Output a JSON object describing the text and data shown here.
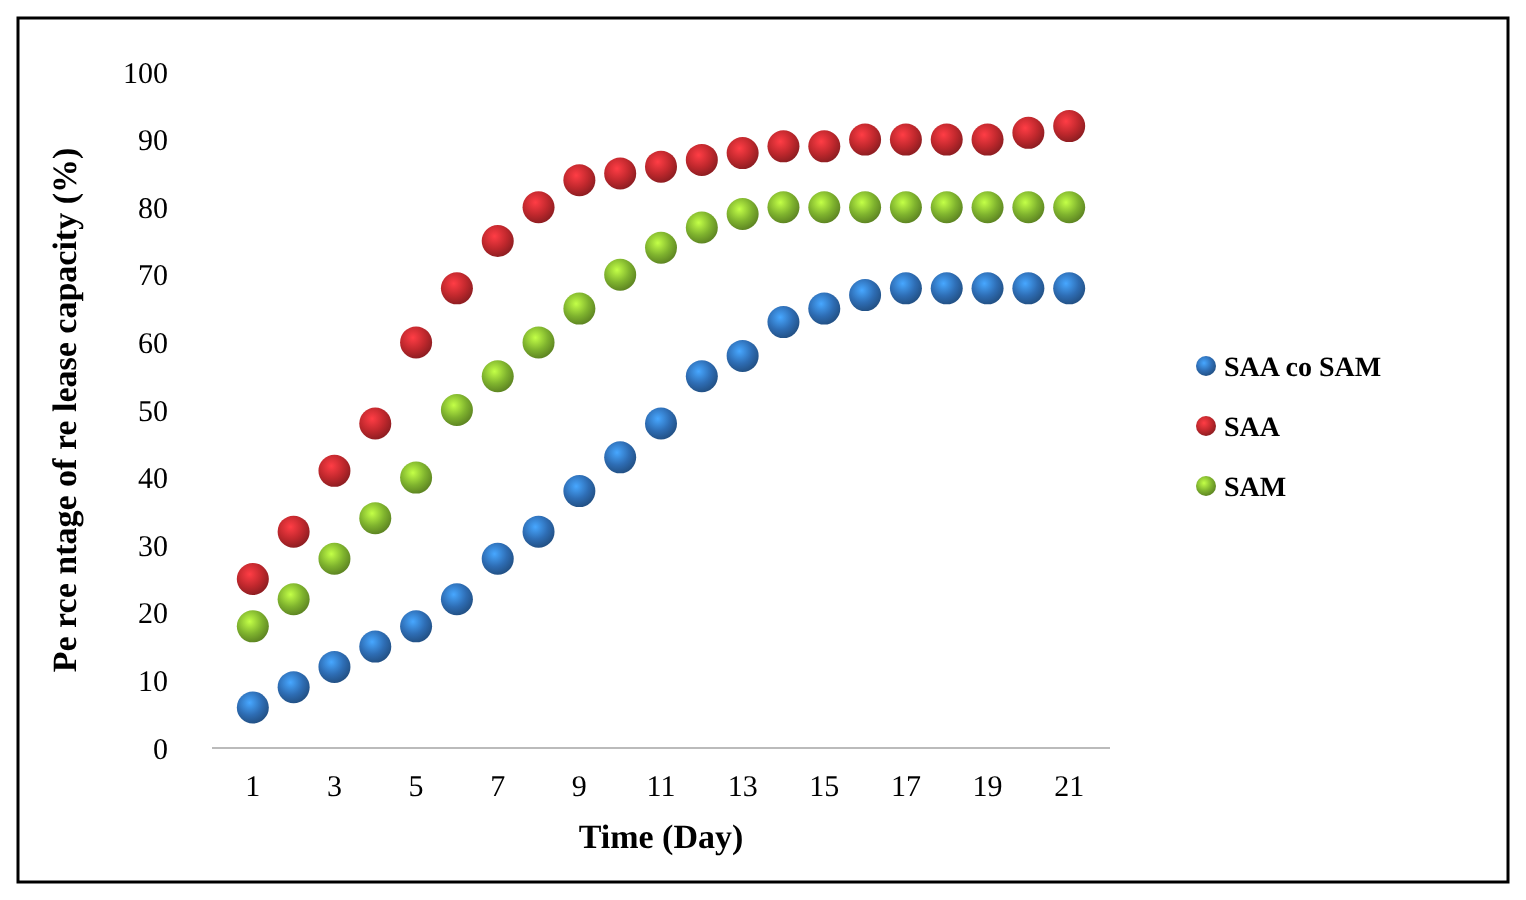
{
  "chart_data": {
    "type": "scatter",
    "xlabel": "Time (Day)",
    "ylabel": "Pe rce ntage of  re lease capacity (%)",
    "x": [
      1,
      2,
      3,
      4,
      5,
      6,
      7,
      8,
      9,
      10,
      11,
      12,
      13,
      14,
      15,
      16,
      17,
      18,
      19,
      20,
      21
    ],
    "xlim": [
      0,
      22
    ],
    "xticks": [
      1,
      3,
      5,
      7,
      9,
      11,
      13,
      15,
      17,
      19,
      21
    ],
    "ylim": [
      0,
      100
    ],
    "yticks": [
      0,
      10,
      20,
      30,
      40,
      50,
      60,
      70,
      80,
      90,
      100
    ],
    "grid": false,
    "legend": "right",
    "marker": "circle",
    "series": [
      {
        "name": "SAA co SAM",
        "color": "#2e6db4",
        "values": [
          6,
          9,
          12,
          15,
          18,
          22,
          28,
          32,
          38,
          43,
          48,
          55,
          58,
          63,
          65,
          67,
          68,
          68,
          68,
          68,
          68
        ]
      },
      {
        "name": "SAA",
        "color": "#c0282d",
        "values": [
          25,
          32,
          41,
          48,
          60,
          68,
          75,
          80,
          84,
          85,
          86,
          87,
          88,
          89,
          89,
          90,
          90,
          90,
          90,
          91,
          92
        ]
      },
      {
        "name": "SAM",
        "color": "#7fb32e",
        "values": [
          18,
          22,
          28,
          34,
          40,
          50,
          55,
          60,
          65,
          70,
          74,
          77,
          79,
          80,
          80,
          80,
          80,
          80,
          80,
          80,
          80
        ]
      }
    ]
  }
}
